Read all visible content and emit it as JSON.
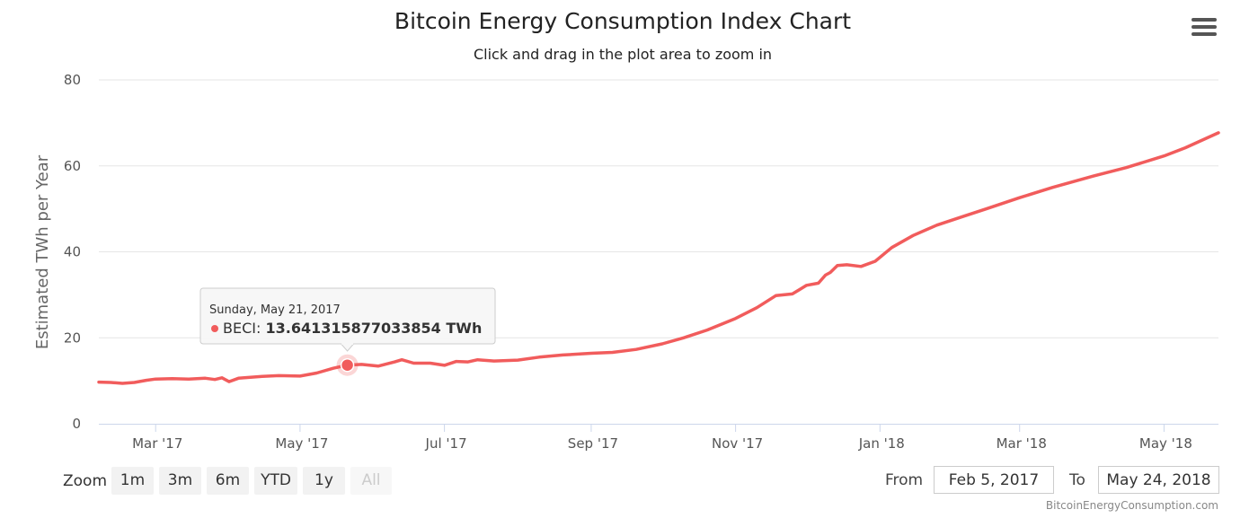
{
  "header": {
    "title": "Bitcoin Energy Consumption Index Chart",
    "subtitle": "Click and drag in the plot area to zoom in",
    "menu_icon": "hamburger-menu-icon"
  },
  "chart_data": {
    "type": "line",
    "ylabel": "Estimated TWh per Year",
    "ylim": [
      0,
      80
    ],
    "yticks": [
      0,
      20,
      40,
      60,
      80
    ],
    "xlim": [
      "2017-02-05",
      "2018-05-24"
    ],
    "xticks": [
      {
        "date": "2017-03-01",
        "label": "Mar '17"
      },
      {
        "date": "2017-05-01",
        "label": "May '17"
      },
      {
        "date": "2017-07-01",
        "label": "Jul '17"
      },
      {
        "date": "2017-09-01",
        "label": "Sep '17"
      },
      {
        "date": "2017-11-01",
        "label": "Nov '17"
      },
      {
        "date": "2018-01-01",
        "label": "Jan '18"
      },
      {
        "date": "2018-03-01",
        "label": "Mar '18"
      },
      {
        "date": "2018-05-01",
        "label": "May '18"
      }
    ],
    "grid": true,
    "series": [
      {
        "name": "BECI",
        "color": "#f15c5c",
        "points": [
          [
            "2017-02-05",
            9.7
          ],
          [
            "2017-02-10",
            9.6
          ],
          [
            "2017-02-15",
            9.4
          ],
          [
            "2017-02-20",
            9.6
          ],
          [
            "2017-02-25",
            10.1
          ],
          [
            "2017-03-01",
            10.4
          ],
          [
            "2017-03-08",
            10.5
          ],
          [
            "2017-03-15",
            10.4
          ],
          [
            "2017-03-22",
            10.6
          ],
          [
            "2017-03-26",
            10.3
          ],
          [
            "2017-03-29",
            10.7
          ],
          [
            "2017-04-01",
            9.8
          ],
          [
            "2017-04-05",
            10.6
          ],
          [
            "2017-04-10",
            10.8
          ],
          [
            "2017-04-15",
            11.0
          ],
          [
            "2017-04-22",
            11.2
          ],
          [
            "2017-05-01",
            11.1
          ],
          [
            "2017-05-08",
            11.8
          ],
          [
            "2017-05-15",
            12.9
          ],
          [
            "2017-05-21",
            13.64
          ],
          [
            "2017-05-27",
            13.8
          ],
          [
            "2017-06-03",
            13.4
          ],
          [
            "2017-06-10",
            14.4
          ],
          [
            "2017-06-13",
            14.9
          ],
          [
            "2017-06-18",
            14.1
          ],
          [
            "2017-06-25",
            14.1
          ],
          [
            "2017-07-01",
            13.6
          ],
          [
            "2017-07-06",
            14.5
          ],
          [
            "2017-07-11",
            14.4
          ],
          [
            "2017-07-15",
            14.9
          ],
          [
            "2017-07-22",
            14.6
          ],
          [
            "2017-08-01",
            14.8
          ],
          [
            "2017-08-10",
            15.5
          ],
          [
            "2017-08-20",
            16.0
          ],
          [
            "2017-09-01",
            16.4
          ],
          [
            "2017-09-10",
            16.6
          ],
          [
            "2017-09-20",
            17.3
          ],
          [
            "2017-10-01",
            18.6
          ],
          [
            "2017-10-10",
            20.0
          ],
          [
            "2017-10-20",
            21.8
          ],
          [
            "2017-11-01",
            24.5
          ],
          [
            "2017-11-10",
            27.0
          ],
          [
            "2017-11-18",
            29.8
          ],
          [
            "2017-11-25",
            30.2
          ],
          [
            "2017-12-01",
            32.2
          ],
          [
            "2017-12-06",
            32.7
          ],
          [
            "2017-12-09",
            34.6
          ],
          [
            "2017-12-11",
            35.2
          ],
          [
            "2017-12-14",
            36.8
          ],
          [
            "2017-12-18",
            37.0
          ],
          [
            "2017-12-24",
            36.6
          ],
          [
            "2017-12-30",
            37.8
          ],
          [
            "2018-01-06",
            41.0
          ],
          [
            "2018-01-15",
            43.8
          ],
          [
            "2018-01-25",
            46.2
          ],
          [
            "2018-02-05",
            48.2
          ],
          [
            "2018-02-15",
            50.0
          ],
          [
            "2018-03-01",
            52.6
          ],
          [
            "2018-03-15",
            55.0
          ],
          [
            "2018-04-01",
            57.6
          ],
          [
            "2018-04-15",
            59.6
          ],
          [
            "2018-05-01",
            62.3
          ],
          [
            "2018-05-10",
            64.2
          ],
          [
            "2018-05-24",
            67.7
          ]
        ]
      }
    ],
    "tooltip": {
      "date_label": "Sunday, May 21, 2017",
      "point_date": "2017-05-21",
      "point_value": 13.641315877033854,
      "series_label": "BECI:",
      "value_label": "13.641315877033854 TWh"
    }
  },
  "range_selector": {
    "zoom_label": "Zoom",
    "buttons": [
      "1m",
      "3m",
      "6m",
      "YTD",
      "1y",
      "All"
    ],
    "from_label": "From",
    "from_value": "Feb 5, 2017",
    "to_label": "To",
    "to_value": "May 24, 2018"
  },
  "credit": "BitcoinEnergyConsumption.com"
}
